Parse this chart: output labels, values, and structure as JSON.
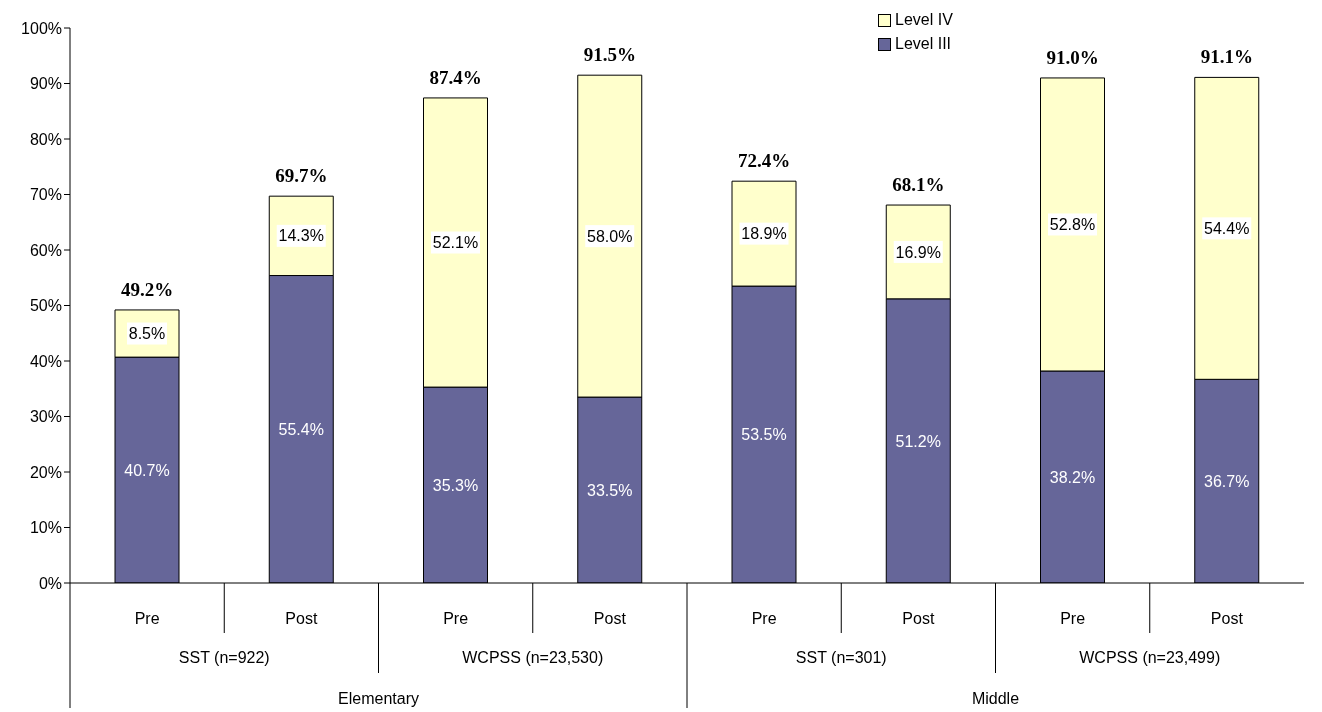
{
  "chart_data": {
    "type": "bar",
    "stacked": true,
    "categories": [
      "Pre",
      "Post",
      "Pre",
      "Post",
      "Pre",
      "Post",
      "Pre",
      "Post"
    ],
    "series": [
      {
        "name": "Level III",
        "color": "#666699",
        "values": [
          40.7,
          55.4,
          35.3,
          33.5,
          53.5,
          51.2,
          38.2,
          36.7
        ],
        "value_labels": [
          "40.7%",
          "55.4%",
          "35.3%",
          "33.5%",
          "53.5%",
          "51.2%",
          "38.2%",
          "36.7%"
        ]
      },
      {
        "name": "Level IV",
        "color": "#ffffcc",
        "values": [
          8.5,
          14.3,
          52.1,
          58.0,
          18.9,
          16.9,
          52.8,
          54.4
        ],
        "value_labels": [
          "8.5%",
          "14.3%",
          "52.1%",
          "58.0%",
          "18.9%",
          "16.9%",
          "52.8%",
          "54.4%"
        ]
      }
    ],
    "totals": [
      "49.2%",
      "69.7%",
      "87.4%",
      "91.5%",
      "72.4%",
      "68.1%",
      "91.0%",
      "91.1%"
    ],
    "ylim": [
      0,
      100
    ],
    "yticks": [
      {
        "value": 0,
        "label": "0%"
      },
      {
        "value": 10,
        "label": "10%"
      },
      {
        "value": 20,
        "label": "20%"
      },
      {
        "value": 30,
        "label": "30%"
      },
      {
        "value": 40,
        "label": "40%"
      },
      {
        "value": 50,
        "label": "50%"
      },
      {
        "value": 60,
        "label": "60%"
      },
      {
        "value": 70,
        "label": "70%"
      },
      {
        "value": 80,
        "label": "80%"
      },
      {
        "value": 90,
        "label": "90%"
      },
      {
        "value": 100,
        "label": "100%"
      }
    ],
    "grid": false,
    "legend": "top",
    "annotations": [
      "SST (n=922)",
      "WCPSS (n=23,530)",
      "SST (n=301)",
      "WCPSS (n=23,499)",
      "Elementary",
      "Middle"
    ]
  }
}
